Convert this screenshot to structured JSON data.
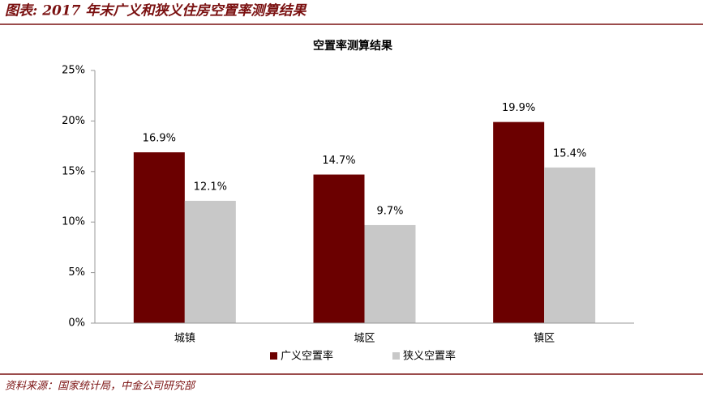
{
  "header": {
    "title": "图表: 2017 年末广义和狭义住房空置率测算结果"
  },
  "footer": {
    "source": "资料来源：国家统计局，中金公司研究部"
  },
  "chart_data": {
    "type": "bar",
    "title": "空置率测算结果",
    "categories": [
      "城镇",
      "城区",
      "镇区"
    ],
    "series": [
      {
        "name": "广义空置率",
        "color": "#6b0000",
        "values": [
          16.9,
          14.7,
          19.9
        ],
        "value_labels": [
          "16.9%",
          "14.7%",
          "19.9%"
        ]
      },
      {
        "name": "狭义空置率",
        "color": "#c8c8c8",
        "values": [
          12.1,
          9.7,
          15.4
        ],
        "value_labels": [
          "12.1%",
          "9.7%",
          "15.4%"
        ]
      }
    ],
    "ylim": [
      0,
      25
    ],
    "yticks": [
      {
        "value": 0,
        "label": "0%"
      },
      {
        "value": 5,
        "label": "5%"
      },
      {
        "value": 10,
        "label": "10%"
      },
      {
        "value": 15,
        "label": "15%"
      },
      {
        "value": 20,
        "label": "20%"
      },
      {
        "value": 25,
        "label": "25%"
      }
    ],
    "grid": false,
    "legend": "bottom"
  }
}
